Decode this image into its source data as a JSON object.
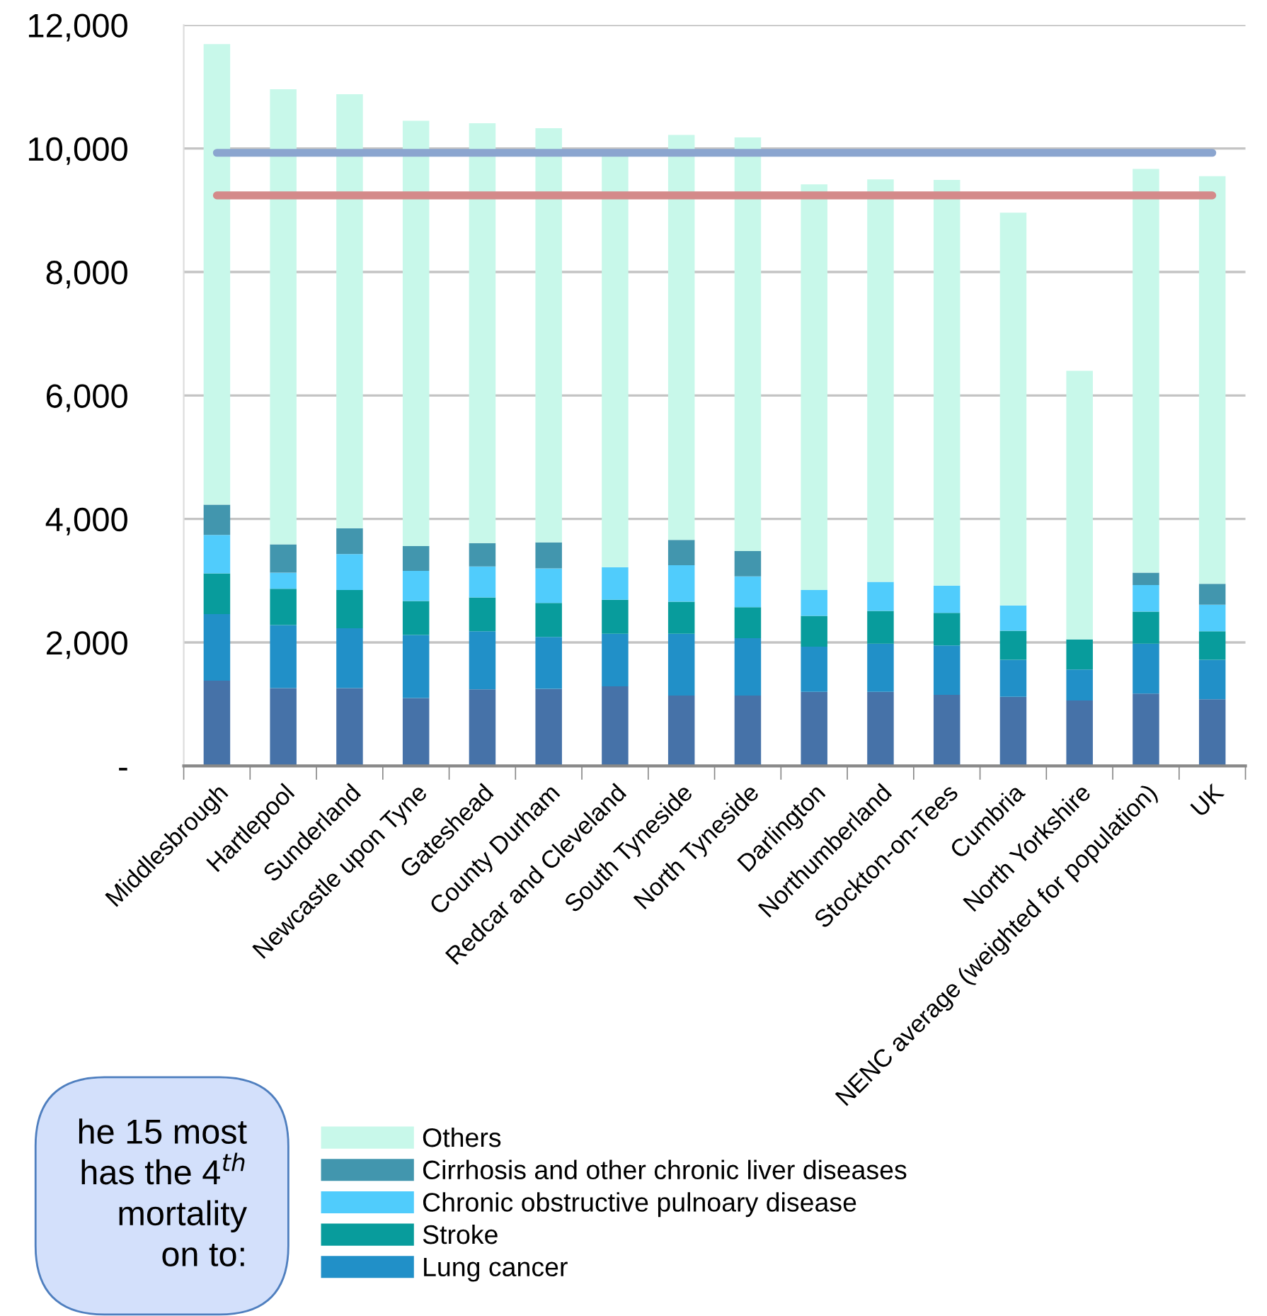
{
  "chart_data": {
    "type": "bar",
    "stacked": true,
    "categories": [
      "Middlesbrough",
      "Hartlepool",
      "Sunderland",
      "Newcastle upon Tyne",
      "Gateshead",
      "County Durham",
      "Redcar and Cleveland",
      "South Tyneside",
      "North Tyneside",
      "Darlington",
      "Northumberland",
      "Stockton-on-Tees",
      "Cumbria",
      "North Yorkshire",
      "NENC average (weighted for population)",
      "UK"
    ],
    "series": [
      {
        "color": "#4672a8",
        "values": [
          1380,
          1260,
          1260,
          1100,
          1240,
          1250,
          1290,
          1140,
          1140,
          1200,
          1200,
          1150,
          1120,
          1060,
          1170,
          1080
        ]
      },
      {
        "name": "Lung cancer",
        "color": "#2190c8",
        "values": [
          1080,
          1020,
          970,
          1020,
          940,
          840,
          850,
          1000,
          930,
          730,
          780,
          800,
          600,
          500,
          810,
          640
        ]
      },
      {
        "name": "Stroke",
        "color": "#089c9c",
        "values": [
          660,
          590,
          620,
          550,
          550,
          550,
          550,
          520,
          500,
          500,
          530,
          530,
          470,
          490,
          520,
          460
        ]
      },
      {
        "name": "Chronic obstructive pulnoary disease",
        "color": "#50ccfc",
        "values": [
          620,
          260,
          580,
          490,
          500,
          560,
          530,
          590,
          500,
          420,
          470,
          440,
          410,
          0,
          430,
          430
        ]
      },
      {
        "name": "Cirrhosis and other chronic liver diseases",
        "color": "#4296ae",
        "values": [
          490,
          460,
          420,
          400,
          380,
          420,
          0,
          410,
          410,
          0,
          0,
          0,
          0,
          0,
          200,
          340
        ]
      },
      {
        "name": "Others",
        "color": "#c8f8ea",
        "values": [
          7460,
          7370,
          7030,
          6890,
          6800,
          6710,
          6680,
          6560,
          6700,
          6570,
          6520,
          6570,
          6360,
          4350,
          6540,
          6600
        ]
      },
      {
        "type": "line",
        "color": "#8ba5cf",
        "values": [
          9930,
          9930,
          9930,
          9930,
          9930,
          9930,
          9930,
          9930,
          9930,
          9930,
          9930,
          9930,
          9930,
          9930,
          9930,
          9930
        ]
      },
      {
        "type": "line",
        "color": "#d48a8a",
        "values": [
          9240,
          9240,
          9240,
          9240,
          9240,
          9240,
          9240,
          9240,
          9240,
          9240,
          9240,
          9240,
          9240,
          9240,
          9240,
          9240
        ]
      }
    ],
    "ylim": [
      0,
      12000
    ],
    "yticks": [
      {
        "value": 0,
        "label": "-"
      },
      {
        "value": 2000,
        "label": "2,000"
      },
      {
        "value": 4000,
        "label": "4,000"
      },
      {
        "value": 6000,
        "label": "6,000"
      },
      {
        "value": 8000,
        "label": "8,000"
      },
      {
        "value": 10000,
        "label": "10,000"
      },
      {
        "value": 12000,
        "label": "12,000"
      }
    ],
    "grid": "y",
    "legend": "bottom",
    "marker": "none",
    "line_style": "solid",
    "annotations": [
      "he 15 most\nhas the 4$^{th}$\nmortality\non to:"
    ]
  }
}
